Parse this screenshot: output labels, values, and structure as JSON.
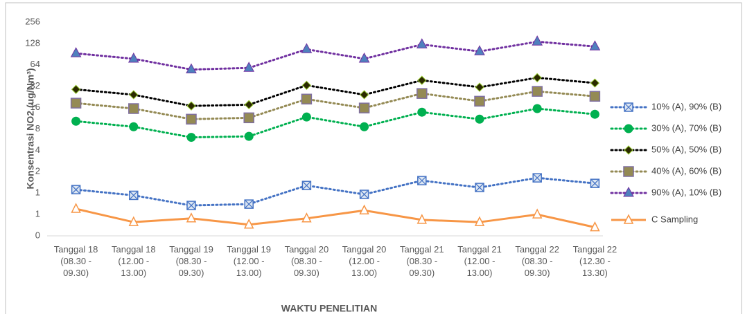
{
  "chart_data": {
    "type": "line",
    "y_label": "Konsentrasi NO2 (ug/Nm³)",
    "x_label": "WAKTU PENELITIAN",
    "log_scale": true,
    "log_base": 2,
    "grid": false,
    "legend": "right",
    "categories": [
      "Tanggal 18 (08.30 - 09.30)",
      "Tanggal 18 (12.00 - 13.00)",
      "Tanggal 19 (08.30 - 09.30)",
      "Tanggal 19 (12.00 - 13.00)",
      "Tanggal 20 (08.30 - 09.30)",
      "Tanggal 20 (12.00 - 13.00)",
      "Tanggal 21 (08.30 - 09.30)",
      "Tanggal 21 (12.00 - 13.00)",
      "Tanggal 22 (08.30 - 09.30)",
      "Tanggal 22 (12.30 - 13.30)"
    ],
    "ylim": [
      0.25,
      256
    ],
    "yticks": [
      {
        "value": 0.25,
        "label": "0"
      },
      {
        "value": 0.5,
        "label": "1"
      },
      1,
      2,
      4,
      8,
      16,
      32,
      64,
      128,
      256
    ],
    "series": [
      {
        "name": "10% (A), 90% (B)",
        "color": "#4472c4",
        "marker": "square-x",
        "dash": "dotted",
        "values": [
          1.12,
          0.93,
          0.67,
          0.7,
          1.28,
          0.96,
          1.5,
          1.2,
          1.64,
          1.37
        ]
      },
      {
        "name": "30% (A), 70% (B)",
        "color": "#00b050",
        "marker": "circle",
        "dash": "dotted",
        "values": [
          10.3,
          8.6,
          6.1,
          6.3,
          11.8,
          8.6,
          13.8,
          11,
          15.5,
          12.9
        ]
      },
      {
        "name": "50% (A), 50% (B)",
        "color": "#000000",
        "marker": "diamond",
        "dash": "dotted",
        "values": [
          28.9,
          24.3,
          16.9,
          17.6,
          33,
          24.3,
          38.8,
          31,
          42.2,
          35.5
        ]
      },
      {
        "name": "40% (A), 60% (B)",
        "color": "#948a54",
        "marker": "square",
        "dash": "dotted",
        "values": [
          18.5,
          15.5,
          11,
          11.5,
          21.1,
          15.8,
          25.3,
          19.7,
          27.1,
          23.1
        ]
      },
      {
        "name": "90% (A), 10% (B)",
        "color": "#7030a0",
        "marker": "triangle",
        "dash": "dotted",
        "values": [
          93,
          78,
          55,
          58,
          106,
          78,
          124,
          99,
          136,
          116
        ]
      },
      {
        "name": "C Sampling",
        "color": "#f79646",
        "marker": "triangle-open",
        "dash": "solid",
        "values": [
          0.6,
          0.39,
          0.44,
          0.36,
          0.44,
          0.57,
          0.42,
          0.39,
          0.5,
          0.33
        ]
      }
    ]
  }
}
